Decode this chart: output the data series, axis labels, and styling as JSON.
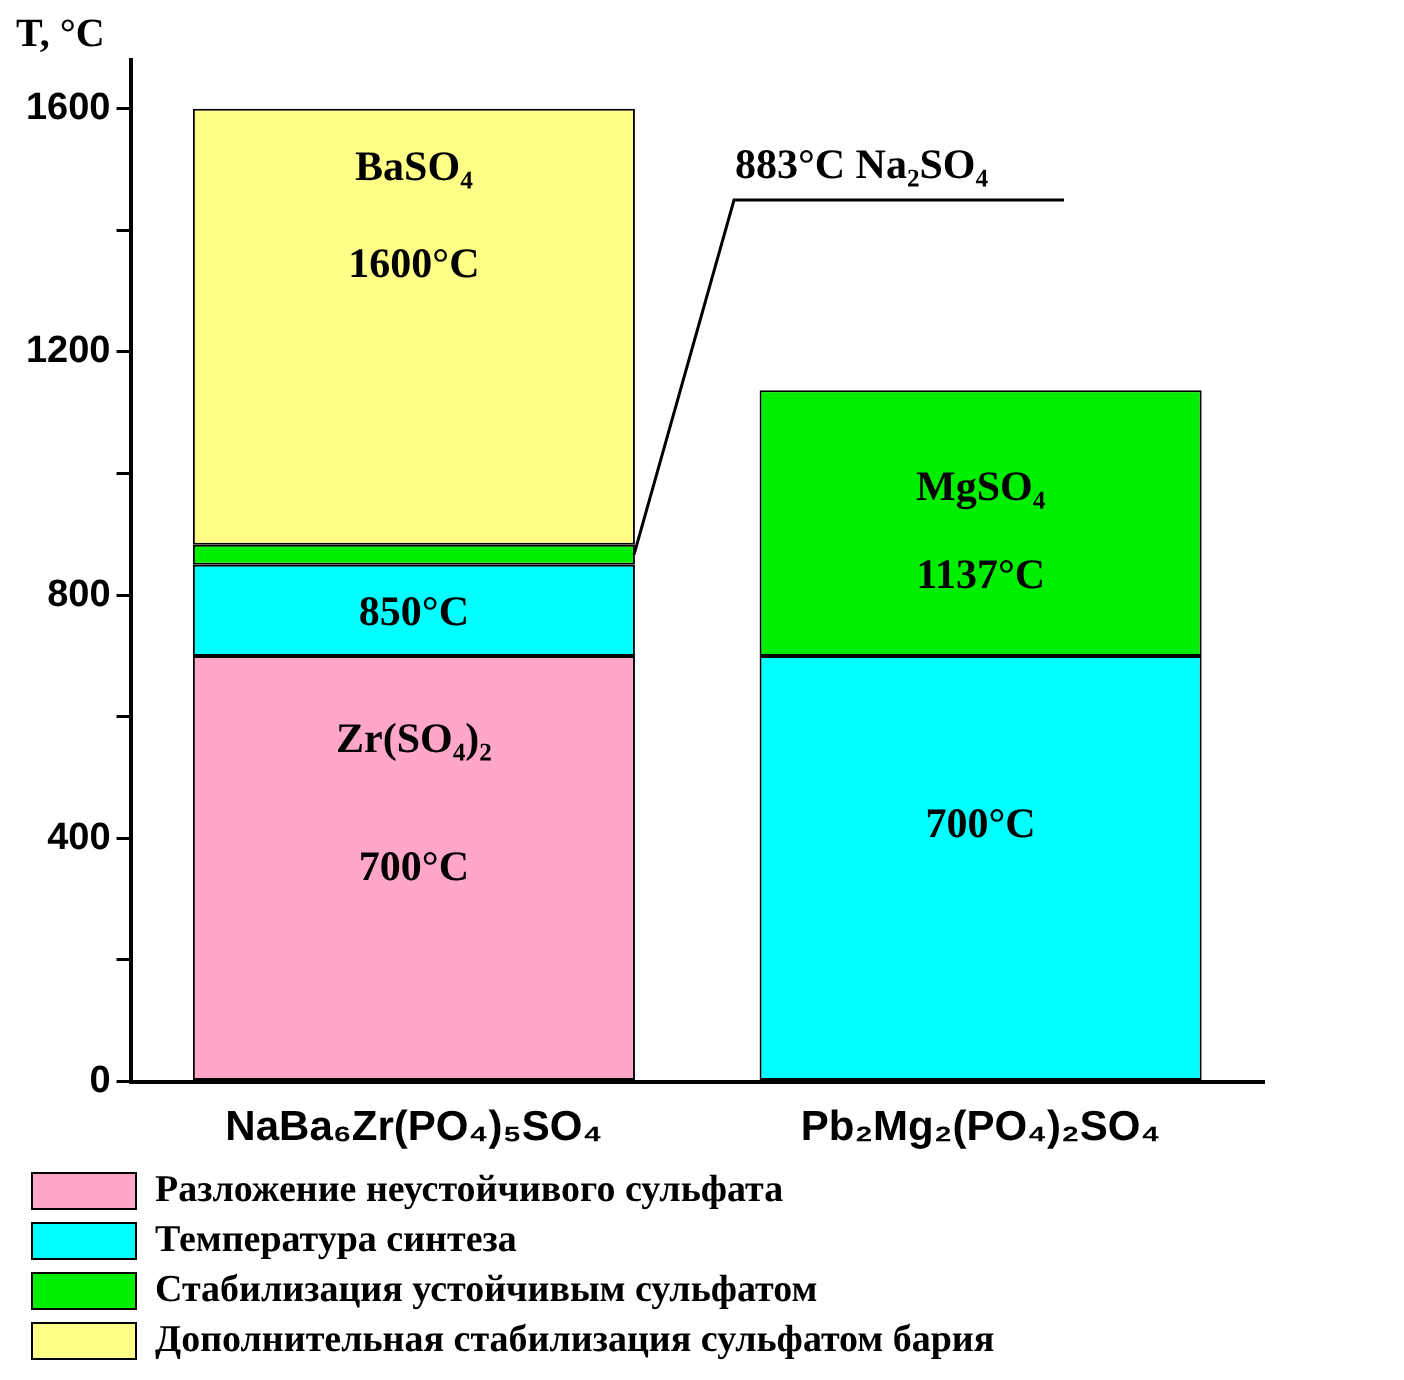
{
  "chart_data": {
    "type": "bar",
    "stacked": true,
    "ylabel": "T, °C",
    "categories": [
      "NaBa₆Zr(PO₄)₅SO₄",
      "Pb₂Mg₂(PO₄)₂SO₄"
    ],
    "series": [
      {
        "name": "Разложение неустойчивого сульфата",
        "color": "#ffa6c9",
        "values": [
          700,
          null
        ]
      },
      {
        "name": "Температура синтеза",
        "color": "#00ffff",
        "values": [
          150,
          700
        ]
      },
      {
        "name": "Стабилизация устойчивым сульфатом",
        "color": "#00ee00",
        "values": [
          33,
          437
        ]
      },
      {
        "name": "Дополнительная стабилизация сульфатом бария",
        "color": "#ffff88",
        "values": [
          717,
          null
        ]
      }
    ],
    "ylim": [
      0,
      1680
    ],
    "yticks": [
      0,
      {
        "value": 200,
        "label": null
      },
      400,
      {
        "value": 600,
        "label": null
      },
      800,
      {
        "value": 1000,
        "label": null
      },
      1200,
      {
        "value": 1400,
        "label": null
      },
      1600
    ],
    "legend": "bottom",
    "annotations": [
      "BaSO₄",
      "1600°C",
      "883°C Na₂SO₄",
      "850°C",
      "Zr(SO₄)₂",
      "700°C",
      "MgSO₄",
      "1137°C",
      "700°C"
    ]
  }
}
